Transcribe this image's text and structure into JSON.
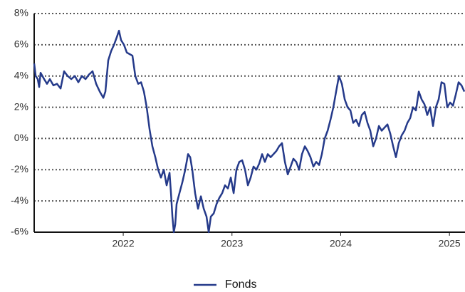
{
  "chart_data": {
    "type": "line",
    "x": [
      2021.181,
      2021.195,
      2021.214,
      2021.227,
      2021.24,
      2021.273,
      2021.299,
      2021.325,
      2021.358,
      2021.391,
      2021.424,
      2021.456,
      2021.489,
      2021.522,
      2021.555,
      2021.587,
      2021.62,
      2021.653,
      2021.686,
      2021.718,
      2021.751,
      2021.784,
      2021.817,
      2021.836,
      2021.862,
      2021.889,
      2021.915,
      2021.941,
      2021.961,
      2021.98,
      2022.007,
      2022.033,
      2022.059,
      2022.085,
      2022.111,
      2022.138,
      2022.164,
      2022.19,
      2022.216,
      2022.242,
      2022.268,
      2022.295,
      2022.321,
      2022.347,
      2022.373,
      2022.399,
      2022.426,
      2022.439,
      2022.452,
      2022.465,
      2022.478,
      2022.491,
      2022.517,
      2022.544,
      2022.57,
      2022.596,
      2022.616,
      2022.635,
      2022.661,
      2022.688,
      2022.714,
      2022.74,
      2022.766,
      2022.786,
      2022.806,
      2022.832,
      2022.858,
      2022.884,
      2022.91,
      2022.936,
      2022.963,
      2022.989,
      2023.015,
      2023.041,
      2023.067,
      2023.094,
      2023.12,
      2023.146,
      2023.172,
      2023.198,
      2023.225,
      2023.251,
      2023.277,
      2023.303,
      2023.329,
      2023.356,
      2023.382,
      2023.408,
      2023.434,
      2023.46,
      2023.487,
      2023.513,
      2023.539,
      2023.565,
      2023.591,
      2023.618,
      2023.644,
      2023.67,
      2023.696,
      2023.722,
      2023.749,
      2023.775,
      2023.801,
      2023.827,
      2023.853,
      2023.88,
      2023.906,
      2023.932,
      2023.958,
      2023.984,
      2024.011,
      2024.037,
      2024.063,
      2024.089,
      2024.115,
      2024.141,
      2024.168,
      2024.194,
      2024.22,
      2024.246,
      2024.272,
      2024.299,
      2024.325,
      2024.351,
      2024.377,
      2024.403,
      2024.43,
      2024.456,
      2024.482,
      2024.508,
      2024.534,
      2024.561,
      2024.587,
      2024.613,
      2024.639,
      2024.665,
      2024.692,
      2024.718,
      2024.744,
      2024.77,
      2024.796,
      2024.822,
      2024.849,
      2024.875,
      2024.901,
      2024.927,
      2024.953,
      2024.98,
      2025.006,
      2025.032,
      2025.058,
      2025.084,
      2025.111,
      2025.137
    ],
    "series": [
      {
        "name": "Fonds",
        "color": "#253a8a",
        "values": [
          4.8,
          4.0,
          3.8,
          3.3,
          4.2,
          3.8,
          3.5,
          3.8,
          3.4,
          3.5,
          3.2,
          4.3,
          4.0,
          3.8,
          4.0,
          3.6,
          4.0,
          3.8,
          4.1,
          4.3,
          3.5,
          3.0,
          2.6,
          3.0,
          5.0,
          5.6,
          6.0,
          6.5,
          6.9,
          6.3,
          6.0,
          5.5,
          5.4,
          5.3,
          4.0,
          3.5,
          3.6,
          3.0,
          2.0,
          0.6,
          -0.5,
          -1.2,
          -2.0,
          -2.5,
          -2.0,
          -3.0,
          -2.2,
          -3.5,
          -5.0,
          -6.0,
          -5.5,
          -4.2,
          -3.5,
          -2.8,
          -2.0,
          -1.0,
          -1.2,
          -2.0,
          -3.5,
          -4.5,
          -3.7,
          -4.5,
          -5.0,
          -6.0,
          -5.0,
          -4.8,
          -4.2,
          -3.8,
          -3.5,
          -3.0,
          -3.2,
          -2.5,
          -3.5,
          -2.0,
          -1.5,
          -1.4,
          -2.0,
          -3.0,
          -2.5,
          -1.8,
          -2.0,
          -1.6,
          -1.0,
          -1.5,
          -1.0,
          -1.2,
          -1.0,
          -0.8,
          -0.5,
          -0.3,
          -1.5,
          -2.3,
          -1.8,
          -1.3,
          -1.5,
          -2.0,
          -1.0,
          -0.5,
          -0.8,
          -1.2,
          -1.8,
          -1.5,
          -1.7,
          -1.0,
          0.0,
          0.5,
          1.2,
          2.0,
          3.0,
          4.0,
          3.5,
          2.5,
          2.0,
          1.8,
          1.0,
          1.2,
          0.8,
          1.5,
          1.7,
          1.0,
          0.5,
          -0.5,
          0.0,
          0.8,
          0.5,
          0.7,
          0.9,
          0.3,
          -0.5,
          -1.2,
          -0.3,
          0.2,
          0.5,
          1.0,
          1.3,
          2.0,
          1.8,
          3.0,
          2.5,
          2.2,
          1.5,
          2.0,
          0.8,
          2.0,
          2.5,
          3.6,
          3.5,
          2.0,
          2.3,
          2.1,
          2.8,
          3.6,
          3.4,
          3.0
        ]
      }
    ],
    "xlim": [
      2021.181,
      2025.143
    ],
    "xticks": [
      2022,
      2023,
      2024,
      2025
    ],
    "ylim": [
      -6,
      8
    ],
    "yticks": [
      {
        "value": -6,
        "label": "-6%"
      },
      {
        "value": -4,
        "label": "-4%"
      },
      {
        "value": -2,
        "label": "-2%"
      },
      {
        "value": 0,
        "label": "0%"
      },
      {
        "value": 2,
        "label": "2%"
      },
      {
        "value": 4,
        "label": "4%"
      },
      {
        "value": 6,
        "label": "6%"
      },
      {
        "value": 8,
        "label": "8%"
      }
    ],
    "grid": true,
    "legend": "bottom"
  }
}
